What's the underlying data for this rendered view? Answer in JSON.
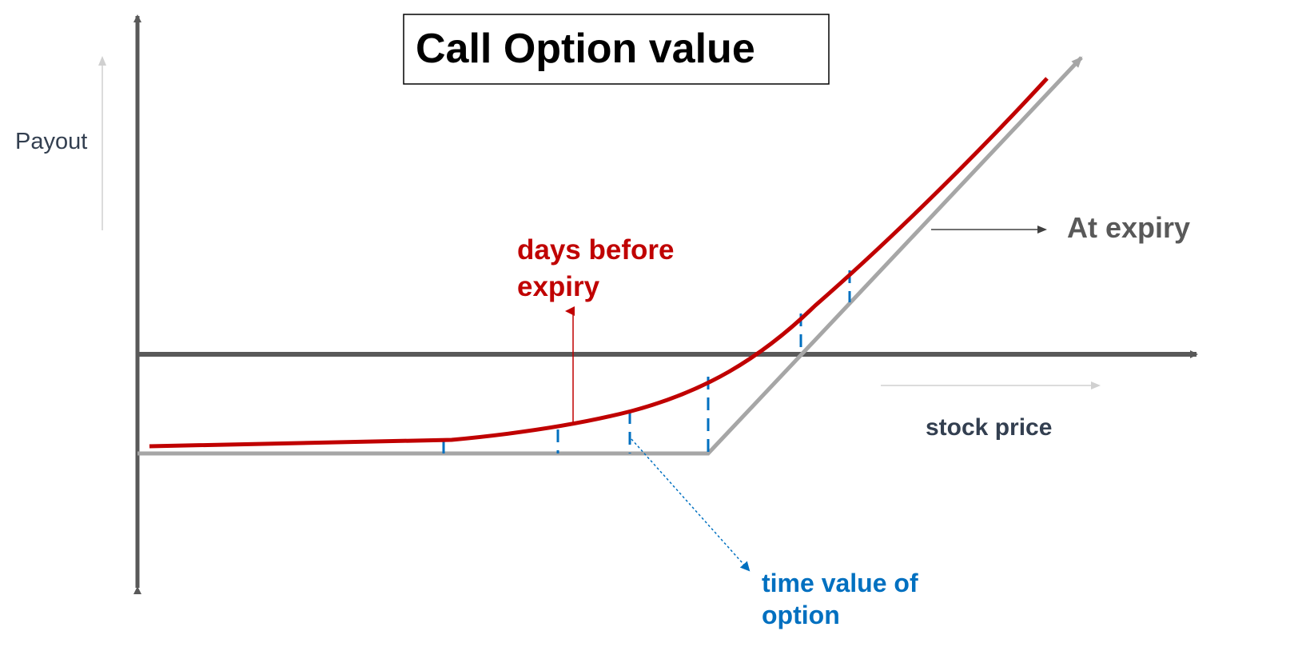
{
  "title": "Call Option value",
  "labels": {
    "payout": "Payout",
    "stock_price": "stock price",
    "at_expiry": "At expiry",
    "days_before_expiry": [
      "days before",
      "expiry"
    ],
    "time_value": [
      "time value of",
      "option"
    ]
  },
  "colors": {
    "axis": "#595959",
    "expiry_line": "#a6a6a6",
    "before_expiry_curve": "#c00000",
    "time_value": "#0070c0",
    "text_dark": "#333f50",
    "light_arrow": "#d0d0d0"
  }
}
